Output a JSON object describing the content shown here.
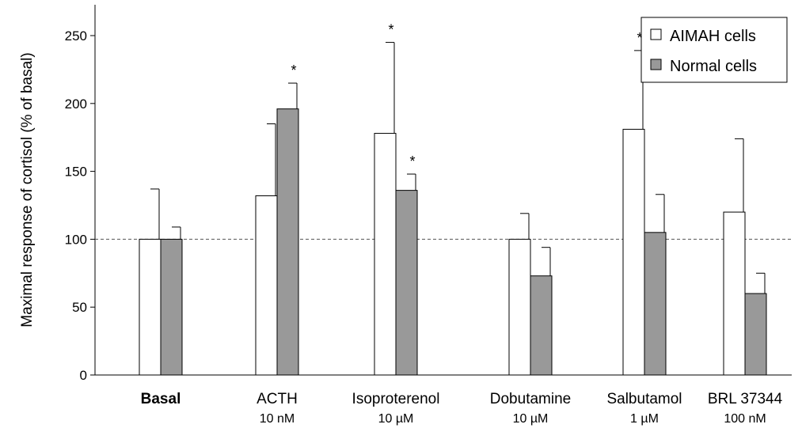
{
  "chart_data": {
    "type": "bar",
    "title": "",
    "xlabel": "",
    "ylabel": "Maximal response of cortisol (% of basal)",
    "ylim": [
      0,
      275
    ],
    "yticks": [
      0,
      50,
      100,
      150,
      200,
      250
    ],
    "reference_line": 100,
    "reference_line_style": "dashed",
    "categories": [
      {
        "label": "Basal",
        "sublabel": "",
        "bold": true
      },
      {
        "label": "ACTH",
        "sublabel": "10 nM",
        "bold": false
      },
      {
        "label": "Isoproterenol",
        "sublabel": "10 µM",
        "bold": false
      },
      {
        "label": "Dobutamine",
        "sublabel": "10 µM",
        "bold": false
      },
      {
        "label": "Salbutamol",
        "sublabel": "1  µM",
        "bold": false
      },
      {
        "label": "BRL 37344",
        "sublabel": "100 nM",
        "bold": false
      }
    ],
    "series": [
      {
        "name": "AIMAH cells",
        "color": "#ffffff",
        "values": [
          100,
          132,
          178,
          100,
          181,
          120
        ],
        "errors": [
          37,
          53,
          67,
          19,
          58,
          54
        ],
        "significant": [
          false,
          false,
          true,
          false,
          true,
          false
        ]
      },
      {
        "name": "Normal cells",
        "color": "#999999",
        "values": [
          100,
          196,
          136,
          73,
          105,
          60
        ],
        "errors": [
          9,
          19,
          12,
          21,
          28,
          15
        ],
        "significant": [
          false,
          true,
          true,
          false,
          false,
          false
        ]
      }
    ],
    "significance_marker": "*",
    "legend_position": "top-right",
    "grid": false
  }
}
